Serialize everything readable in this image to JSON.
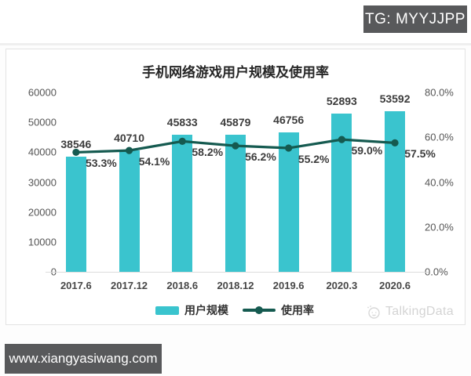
{
  "overlay": {
    "tg_badge": "TG: MYYJJPP",
    "site_badge": "www.xiangyasiwang.com"
  },
  "watermark": {
    "brand": "TalkingData"
  },
  "chart_data": {
    "type": "bar+line",
    "title": "手机网络游戏用户规模及使用率",
    "categories": [
      "2017.6",
      "2017.12",
      "2018.6",
      "2018.12",
      "2019.6",
      "2020.3",
      "2020.6"
    ],
    "series": [
      {
        "name": "用户规模",
        "type": "bar",
        "axis": "left",
        "color": "#3ac4ce",
        "values": [
          38546,
          40710,
          45833,
          45879,
          46756,
          52893,
          53592
        ]
      },
      {
        "name": "使用率",
        "type": "line",
        "axis": "right",
        "color": "#155a50",
        "values": [
          53.3,
          54.1,
          58.2,
          56.2,
          55.2,
          59.0,
          57.5
        ]
      }
    ],
    "left_axis": {
      "min": 0,
      "max": 60000,
      "tick_values": [
        0,
        10000,
        20000,
        30000,
        40000,
        50000,
        60000
      ]
    },
    "right_axis": {
      "min": 0,
      "max": 80,
      "tick_values": [
        0,
        20,
        40,
        60,
        80
      ],
      "format": "percent1"
    },
    "legend_position": "bottom",
    "grid": false
  }
}
